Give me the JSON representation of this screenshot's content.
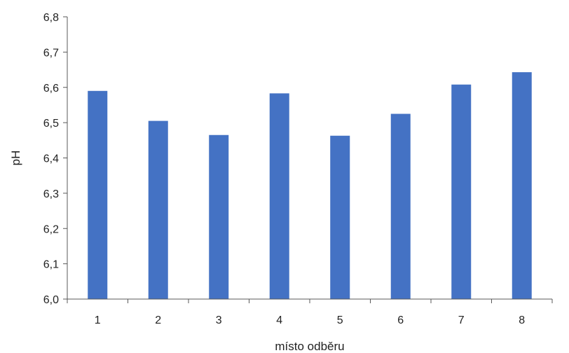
{
  "chart_data": {
    "type": "bar",
    "title": "",
    "xlabel": "místo odběru",
    "ylabel": "pH",
    "categories": [
      "1",
      "2",
      "3",
      "4",
      "5",
      "6",
      "7",
      "8"
    ],
    "values": [
      6.59,
      6.505,
      6.465,
      6.583,
      6.463,
      6.525,
      6.608,
      6.643
    ],
    "ylim": [
      6.0,
      6.8
    ],
    "yticks": [
      "6,0",
      "6,1",
      "6,2",
      "6,3",
      "6,4",
      "6,5",
      "6,6",
      "6,7",
      "6,8"
    ],
    "grid": false,
    "bar_color": "#4472C4",
    "axis_color": "#595959"
  }
}
